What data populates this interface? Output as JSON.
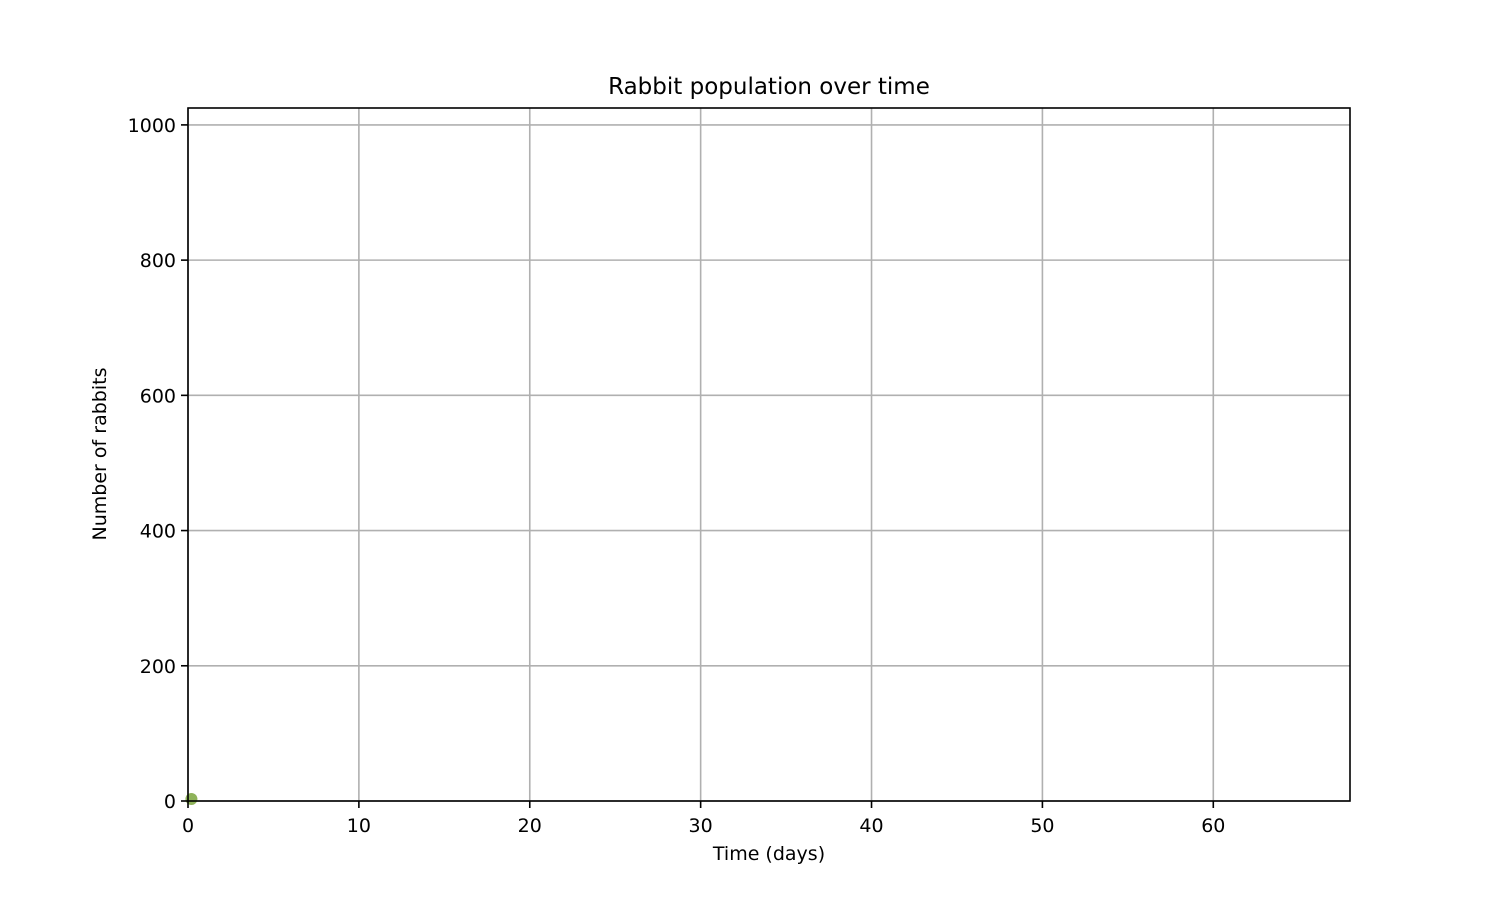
{
  "chart_data": {
    "type": "scatter",
    "title": "Rabbit population over time",
    "xlabel": "Time (days)",
    "ylabel": "Number of rabbits",
    "xlim": [
      0,
      68
    ],
    "ylim": [
      0,
      1025
    ],
    "xticks": [
      0,
      10,
      20,
      30,
      40,
      50,
      60
    ],
    "yticks": [
      0,
      200,
      400,
      600,
      800,
      1000
    ],
    "grid": true,
    "legend": "none",
    "series": [
      {
        "color": "#8fb35a",
        "x": [
          0.2
        ],
        "y": [
          3
        ]
      }
    ]
  }
}
